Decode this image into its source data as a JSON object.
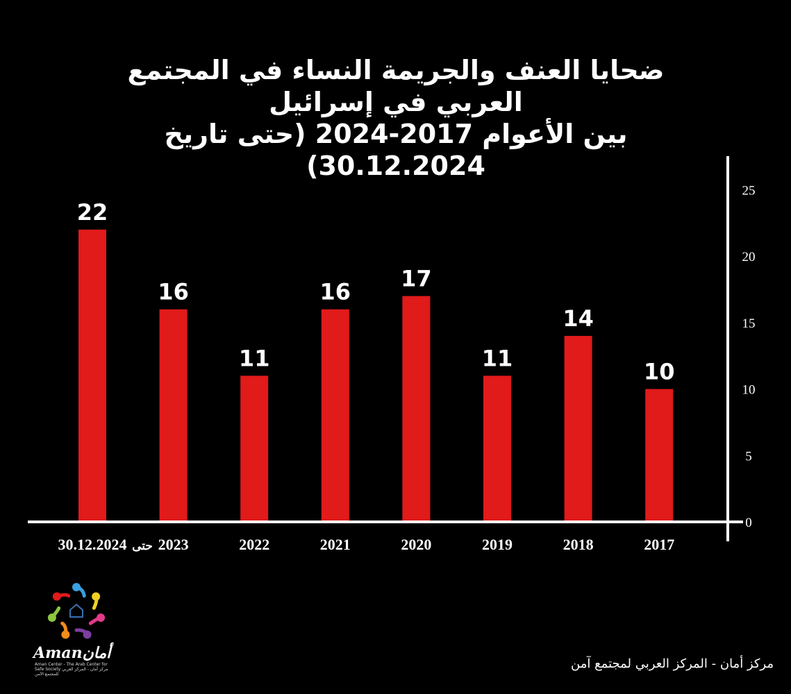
{
  "title": {
    "line1": "ضحايا العنف والجريمة النساء في المجتمع العربي في إسرائيل",
    "line2": "بين الأعوام 2017-2024 (حتى تاريخ 30.12.2024)"
  },
  "chart_data": {
    "type": "bar",
    "categories": [
      "30.12.2024",
      "2023",
      "2022",
      "2021",
      "2020",
      "2019",
      "2018",
      "2017"
    ],
    "category_prefixes": [
      "حتى",
      "",
      "",
      "",
      "",
      "",
      "",
      ""
    ],
    "values": [
      22,
      16,
      11,
      16,
      17,
      11,
      14,
      10
    ],
    "ylim": [
      0,
      28
    ],
    "y_ticks": [
      0,
      5,
      10,
      15,
      20,
      25
    ],
    "y_axis_side": "right",
    "grid": false,
    "legend": "none",
    "bar_color": "#e11a1a"
  },
  "footer": {
    "credit": "مركز أمان  -  المركز العربي لمجتمع آمن"
  },
  "logo": {
    "wordmark": "Amanأمان",
    "subtitle": "Aman Center - The Arab Center for Safe Society مركز أمان - المركز العربي للمجتمع الآمن",
    "colors": [
      "#3aa0e0",
      "#f2d021",
      "#e23a8a",
      "#7b3fa0",
      "#f28c1c",
      "#8cc63f",
      "#e11a1a"
    ]
  },
  "colors": {
    "background": "#000000",
    "text": "#ffffff",
    "axis": "#ffffff"
  }
}
